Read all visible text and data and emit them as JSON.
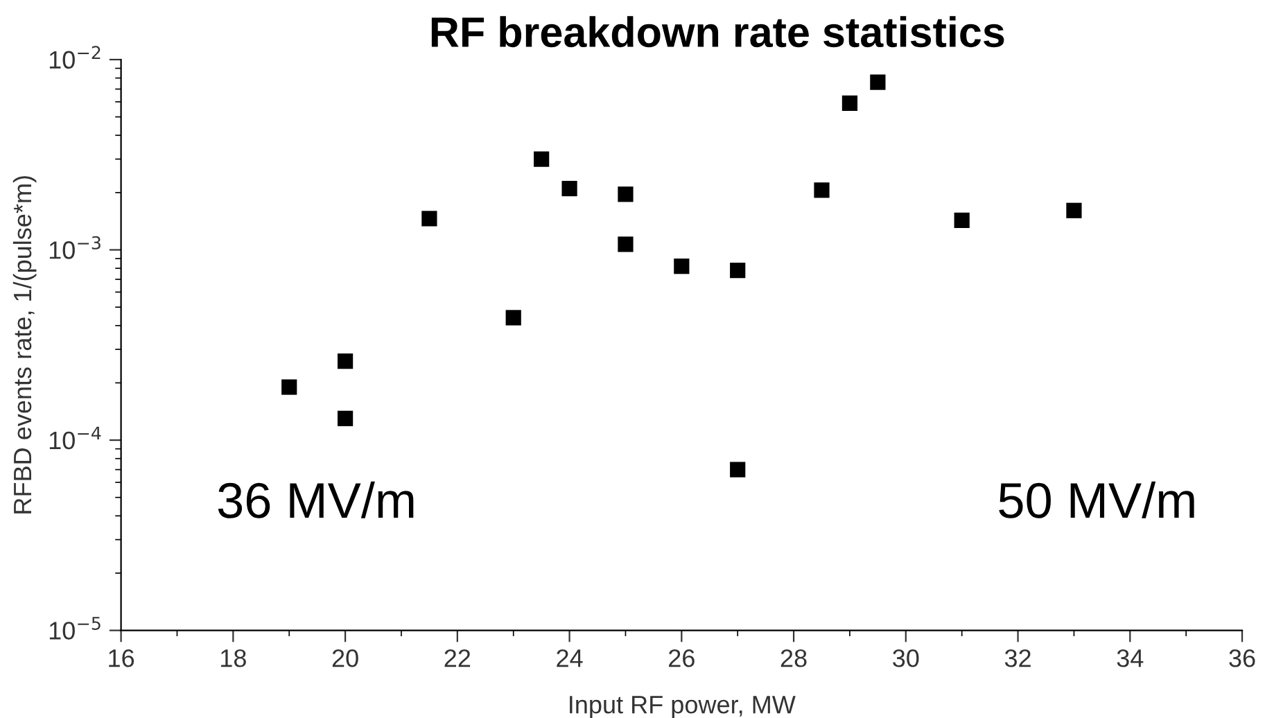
{
  "chart_data": {
    "type": "scatter",
    "title": "RF breakdown rate statistics",
    "xlabel": "Input RF power, MW",
    "ylabel": "RFBD events rate, 1/(pulse*m)",
    "x": [
      19,
      20,
      20,
      21.5,
      23,
      23.5,
      24,
      25,
      25,
      26,
      27,
      27,
      28.5,
      29,
      29.5,
      31,
      33
    ],
    "series": [
      {
        "color": "#000000",
        "values": [
          0.00019,
          0.00026,
          0.00013,
          0.00146,
          0.00044,
          0.003,
          0.0021,
          0.00196,
          0.00107,
          0.00082,
          0.00078,
          7e-05,
          0.00206,
          0.0059,
          0.0076,
          0.00143,
          0.00161
        ]
      }
    ],
    "marker": "square",
    "log": "y",
    "grid": false,
    "legend": false,
    "xlim": [
      16,
      36
    ],
    "xticks": [
      16,
      18,
      20,
      22,
      24,
      26,
      28,
      30,
      32,
      34,
      36
    ],
    "ylim": [
      1e-05,
      0.01
    ],
    "yticks": [
      {
        "value": 1e-05,
        "label": "10$^{−5}$"
      },
      {
        "value": 0.0001,
        "label": "10$^{−4}$"
      },
      {
        "value": 0.001,
        "label": "10$^{−3}$"
      },
      {
        "value": 0.01,
        "label": "10$^{−2}$"
      }
    ],
    "annotations": [
      "36 MV/m",
      "50 MV/m"
    ]
  }
}
